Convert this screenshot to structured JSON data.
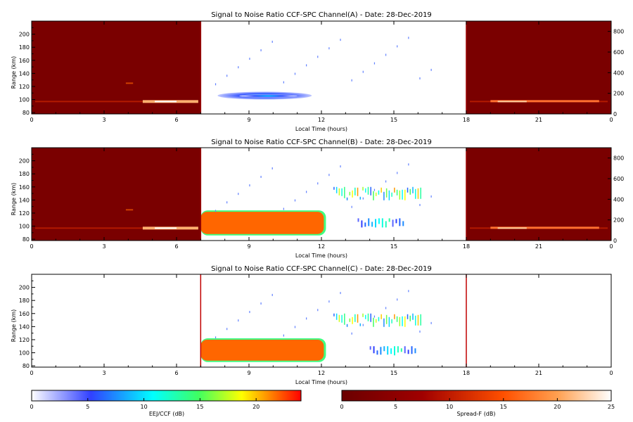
{
  "chart_data": [
    {
      "type": "heatmap",
      "title": "Signal to Noise Ratio CCF-SPC Channel(A) - Date: 28-Dec-2019",
      "xlabel": "Local Time (hours)",
      "ylabel": "Range (km)",
      "xlim": [
        0,
        24
      ],
      "ylim": [
        78,
        220
      ],
      "y2lim": [
        0,
        900
      ],
      "x_ticks": [
        "0",
        "3",
        "6",
        "9",
        "12",
        "15",
        "18",
        "21",
        "0"
      ],
      "y_ticks": [
        "80",
        "100",
        "120",
        "140",
        "160",
        "180",
        "200"
      ],
      "y2_ticks": [
        "0",
        "200",
        "400",
        "600",
        "800"
      ],
      "spread_f_intervals": [
        [
          0,
          7
        ],
        [
          18,
          24
        ]
      ],
      "eej_ccf_patches": [
        {
          "x0": 7.7,
          "x1": 11.6,
          "y0": 100,
          "y1": 112,
          "value": 6
        },
        {
          "x0": 8.6,
          "x1": 11.0,
          "y0": 103,
          "y1": 108,
          "value": 10
        }
      ]
    },
    {
      "type": "heatmap",
      "title": "Signal to Noise Ratio CCF-SPC Channel(B) - Date: 28-Dec-2019",
      "xlabel": "Local Time (hours)",
      "ylabel": "Range (km)",
      "xlim": [
        0,
        24
      ],
      "ylim": [
        78,
        220
      ],
      "y2lim": [
        0,
        900
      ],
      "x_ticks": [
        "0",
        "3",
        "6",
        "9",
        "12",
        "15",
        "18",
        "21",
        "0"
      ],
      "y_ticks": [
        "80",
        "100",
        "120",
        "140",
        "160",
        "180",
        "200"
      ],
      "y2_ticks": [
        "0",
        "200",
        "400",
        "600",
        "800"
      ],
      "spread_f_intervals": [
        [
          0,
          7
        ],
        [
          18,
          24
        ]
      ],
      "eej_ccf_patches": [
        {
          "x0": 7.0,
          "x1": 12.1,
          "y0": 88,
          "y1": 122,
          "value": 22
        },
        {
          "x0": 12.5,
          "x1": 16.2,
          "y0": 138,
          "y1": 160,
          "value": 12
        },
        {
          "x0": 13.5,
          "x1": 15.5,
          "y0": 96,
          "y1": 112,
          "value": 10
        }
      ]
    },
    {
      "type": "heatmap",
      "title": "Signal to Noise Ratio CCF-SPC Channel(C) - Date: 28-Dec-2019",
      "xlabel": "Local Time (hours)",
      "ylabel": "Range (km)",
      "xlim": [
        0,
        24
      ],
      "ylim": [
        78,
        220
      ],
      "x_ticks": [
        "0",
        "3",
        "6",
        "9",
        "12",
        "15",
        "18",
        "21",
        "0"
      ],
      "y_ticks": [
        "80",
        "100",
        "120",
        "140",
        "160",
        "180",
        "200"
      ],
      "spread_f_intervals": [],
      "eej_ccf_patches": [
        {
          "x0": 7.0,
          "x1": 12.1,
          "y0": 88,
          "y1": 120,
          "value": 22
        },
        {
          "x0": 12.5,
          "x1": 16.2,
          "y0": 138,
          "y1": 160,
          "value": 12
        },
        {
          "x0": 14.0,
          "x1": 16.0,
          "y0": 95,
          "y1": 110,
          "value": 10
        }
      ]
    }
  ],
  "colorbars": [
    {
      "label": "EEJ/CCF (dB)",
      "ticks": [
        "0",
        "5",
        "10",
        "15",
        "20"
      ],
      "range": [
        0,
        24
      ],
      "colors": [
        "#ffffff",
        "#2030ff",
        "#00ffff",
        "#ffff00",
        "#ff0000"
      ]
    },
    {
      "label": "Spread-F (dB)",
      "ticks": [
        "0",
        "5",
        "10",
        "15",
        "20",
        "25"
      ],
      "range": [
        0,
        25
      ],
      "colors": [
        "#6b0000",
        "#b00000",
        "#ff5000",
        "#ffb060",
        "#ffffff"
      ]
    }
  ]
}
